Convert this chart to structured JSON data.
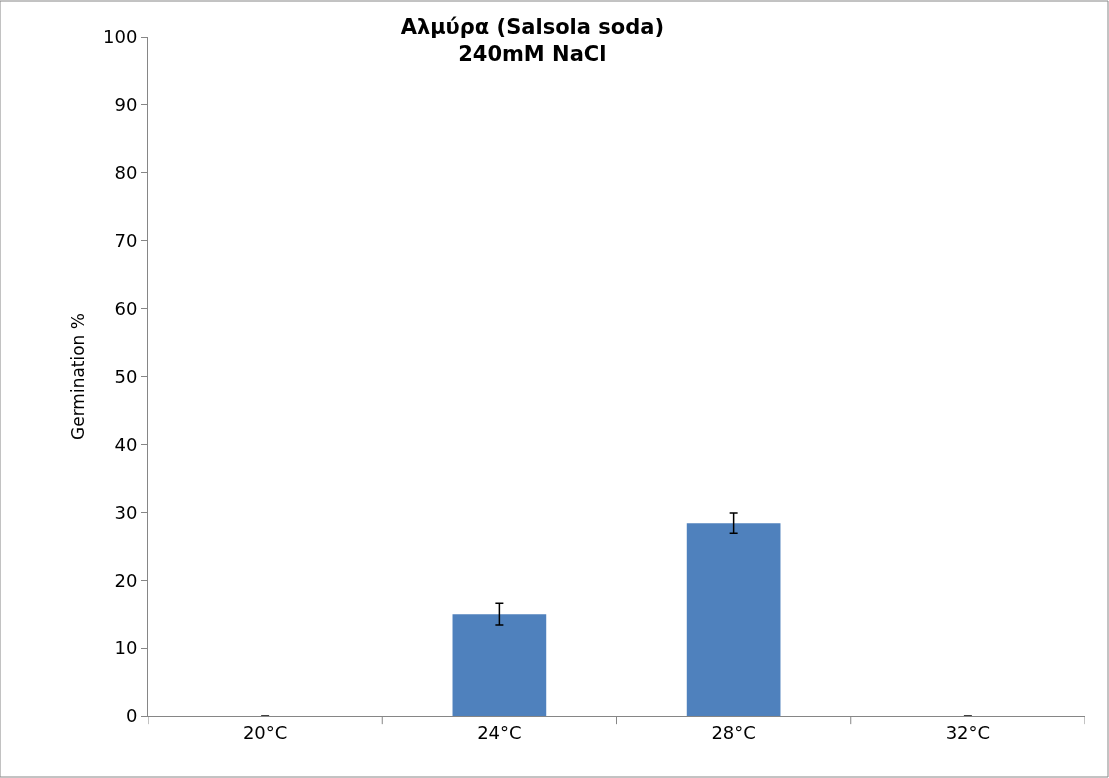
{
  "chart_data": {
    "type": "bar",
    "title": "Αλμύρα (Salsola soda)\n240mM NaCl",
    "ylabel": "Germination %",
    "categories": [
      "20°C",
      "24°C",
      "28°C",
      "32°C"
    ],
    "values": [
      0,
      15.0,
      28.4,
      0
    ],
    "errors": [
      null,
      1.6,
      1.5,
      null
    ],
    "color": "#4f81bd",
    "ylim": [
      0,
      100
    ],
    "yticks": [
      0,
      10,
      20,
      30,
      40,
      50,
      60,
      70,
      80,
      90,
      100
    ]
  }
}
